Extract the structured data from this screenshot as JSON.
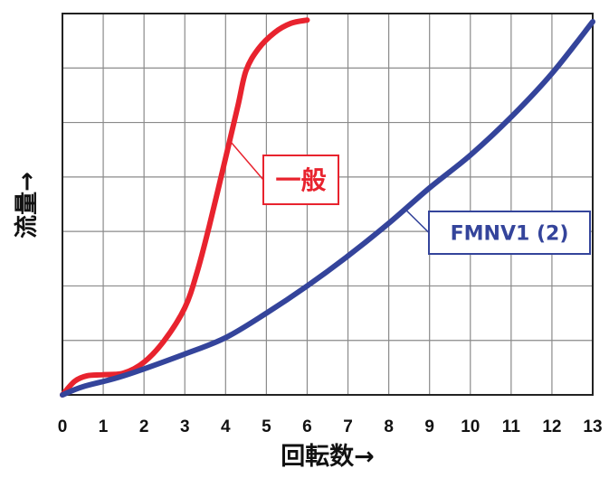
{
  "chart_data": {
    "type": "line",
    "xlabel": "回転数→",
    "ylabel": "流量→",
    "xlim": [
      0,
      13
    ],
    "ylim": [
      0,
      7
    ],
    "x_ticks": [
      "0",
      "1",
      "2",
      "3",
      "4",
      "5",
      "6",
      "7",
      "8",
      "9",
      "10",
      "11",
      "12",
      "13"
    ],
    "y_ticks_labeled": false,
    "grid": true,
    "series": [
      {
        "name": "一般",
        "color": "#e8232e",
        "x": [
          0,
          0.3,
          0.6,
          1.0,
          1.5,
          2.0,
          2.5,
          3.0,
          3.3,
          3.6,
          4.0,
          4.3,
          4.5,
          4.8,
          5.2,
          5.6,
          6.0
        ],
        "y": [
          0,
          0.25,
          0.35,
          0.37,
          0.4,
          0.6,
          1.0,
          1.6,
          2.25,
          3.1,
          4.35,
          5.3,
          5.95,
          6.35,
          6.65,
          6.82,
          6.88
        ]
      },
      {
        "name": "FMNV1 (2)",
        "color": "#34449b",
        "x": [
          0,
          0.5,
          1.5,
          3.0,
          4.0,
          5.0,
          6.0,
          7.0,
          8.0,
          9.0,
          10.0,
          11.0,
          12.0,
          13.0
        ],
        "y": [
          0,
          0.15,
          0.35,
          0.75,
          1.05,
          1.5,
          2.0,
          2.55,
          3.15,
          3.8,
          4.4,
          5.1,
          5.9,
          6.85
        ]
      }
    ]
  }
}
